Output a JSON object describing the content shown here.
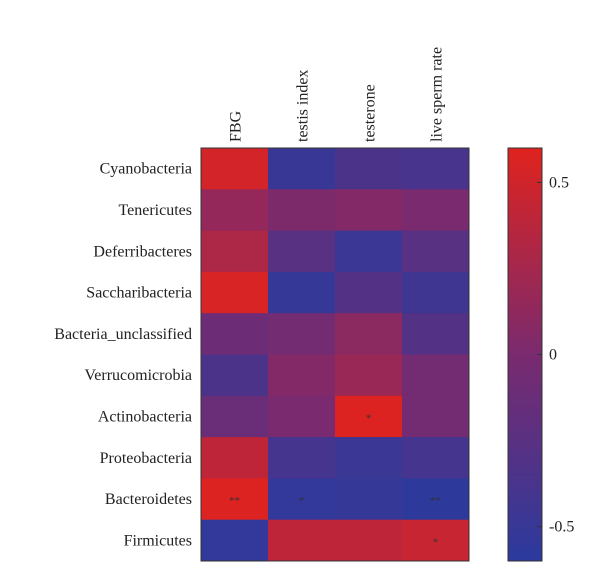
{
  "chart_data": {
    "type": "heatmap",
    "columns": [
      "FBG",
      "testis index",
      "testerone",
      "live sperm rate"
    ],
    "rows": [
      "Cyanobacteria",
      "Tenericutes",
      "Deferribacteres",
      "Saccharibacteria",
      "Bacteria_unclassified",
      "Verrucomicrobia",
      "Actinobacteria",
      "Proteobacteria",
      "Bacteroidetes",
      "Firmicutes"
    ],
    "values": [
      [
        0.52,
        -0.5,
        -0.35,
        -0.38
      ],
      [
        0.15,
        0.02,
        0.05,
        0.0
      ],
      [
        0.3,
        -0.25,
        -0.48,
        -0.25
      ],
      [
        0.55,
        -0.52,
        -0.3,
        -0.45
      ],
      [
        -0.1,
        -0.05,
        0.1,
        -0.3
      ],
      [
        -0.35,
        0.05,
        0.18,
        -0.05
      ],
      [
        -0.12,
        0.0,
        0.58,
        -0.05
      ],
      [
        0.4,
        -0.4,
        -0.48,
        -0.4
      ],
      [
        0.58,
        -0.55,
        -0.52,
        -0.58
      ],
      [
        -0.55,
        0.4,
        0.4,
        0.45
      ]
    ],
    "significance": [
      [
        "",
        "",
        "",
        ""
      ],
      [
        "",
        "",
        "",
        ""
      ],
      [
        "",
        "",
        "",
        ""
      ],
      [
        "",
        "",
        "",
        ""
      ],
      [
        "",
        "",
        "",
        ""
      ],
      [
        "",
        "",
        "",
        ""
      ],
      [
        "",
        "",
        "*",
        ""
      ],
      [
        "",
        "",
        "",
        ""
      ],
      [
        "**",
        "*",
        "",
        "**"
      ],
      [
        "",
        "",
        "",
        "*"
      ]
    ],
    "colorbar": {
      "min": -0.6,
      "max": 0.6,
      "ticks": [
        0.5,
        0,
        -0.5
      ],
      "tick_labels": [
        "0.5",
        "0",
        "-0.5"
      ],
      "low_color": "#2b3a9e",
      "mid_color": "#7a2a6e",
      "high_color": "#e0231e"
    }
  }
}
